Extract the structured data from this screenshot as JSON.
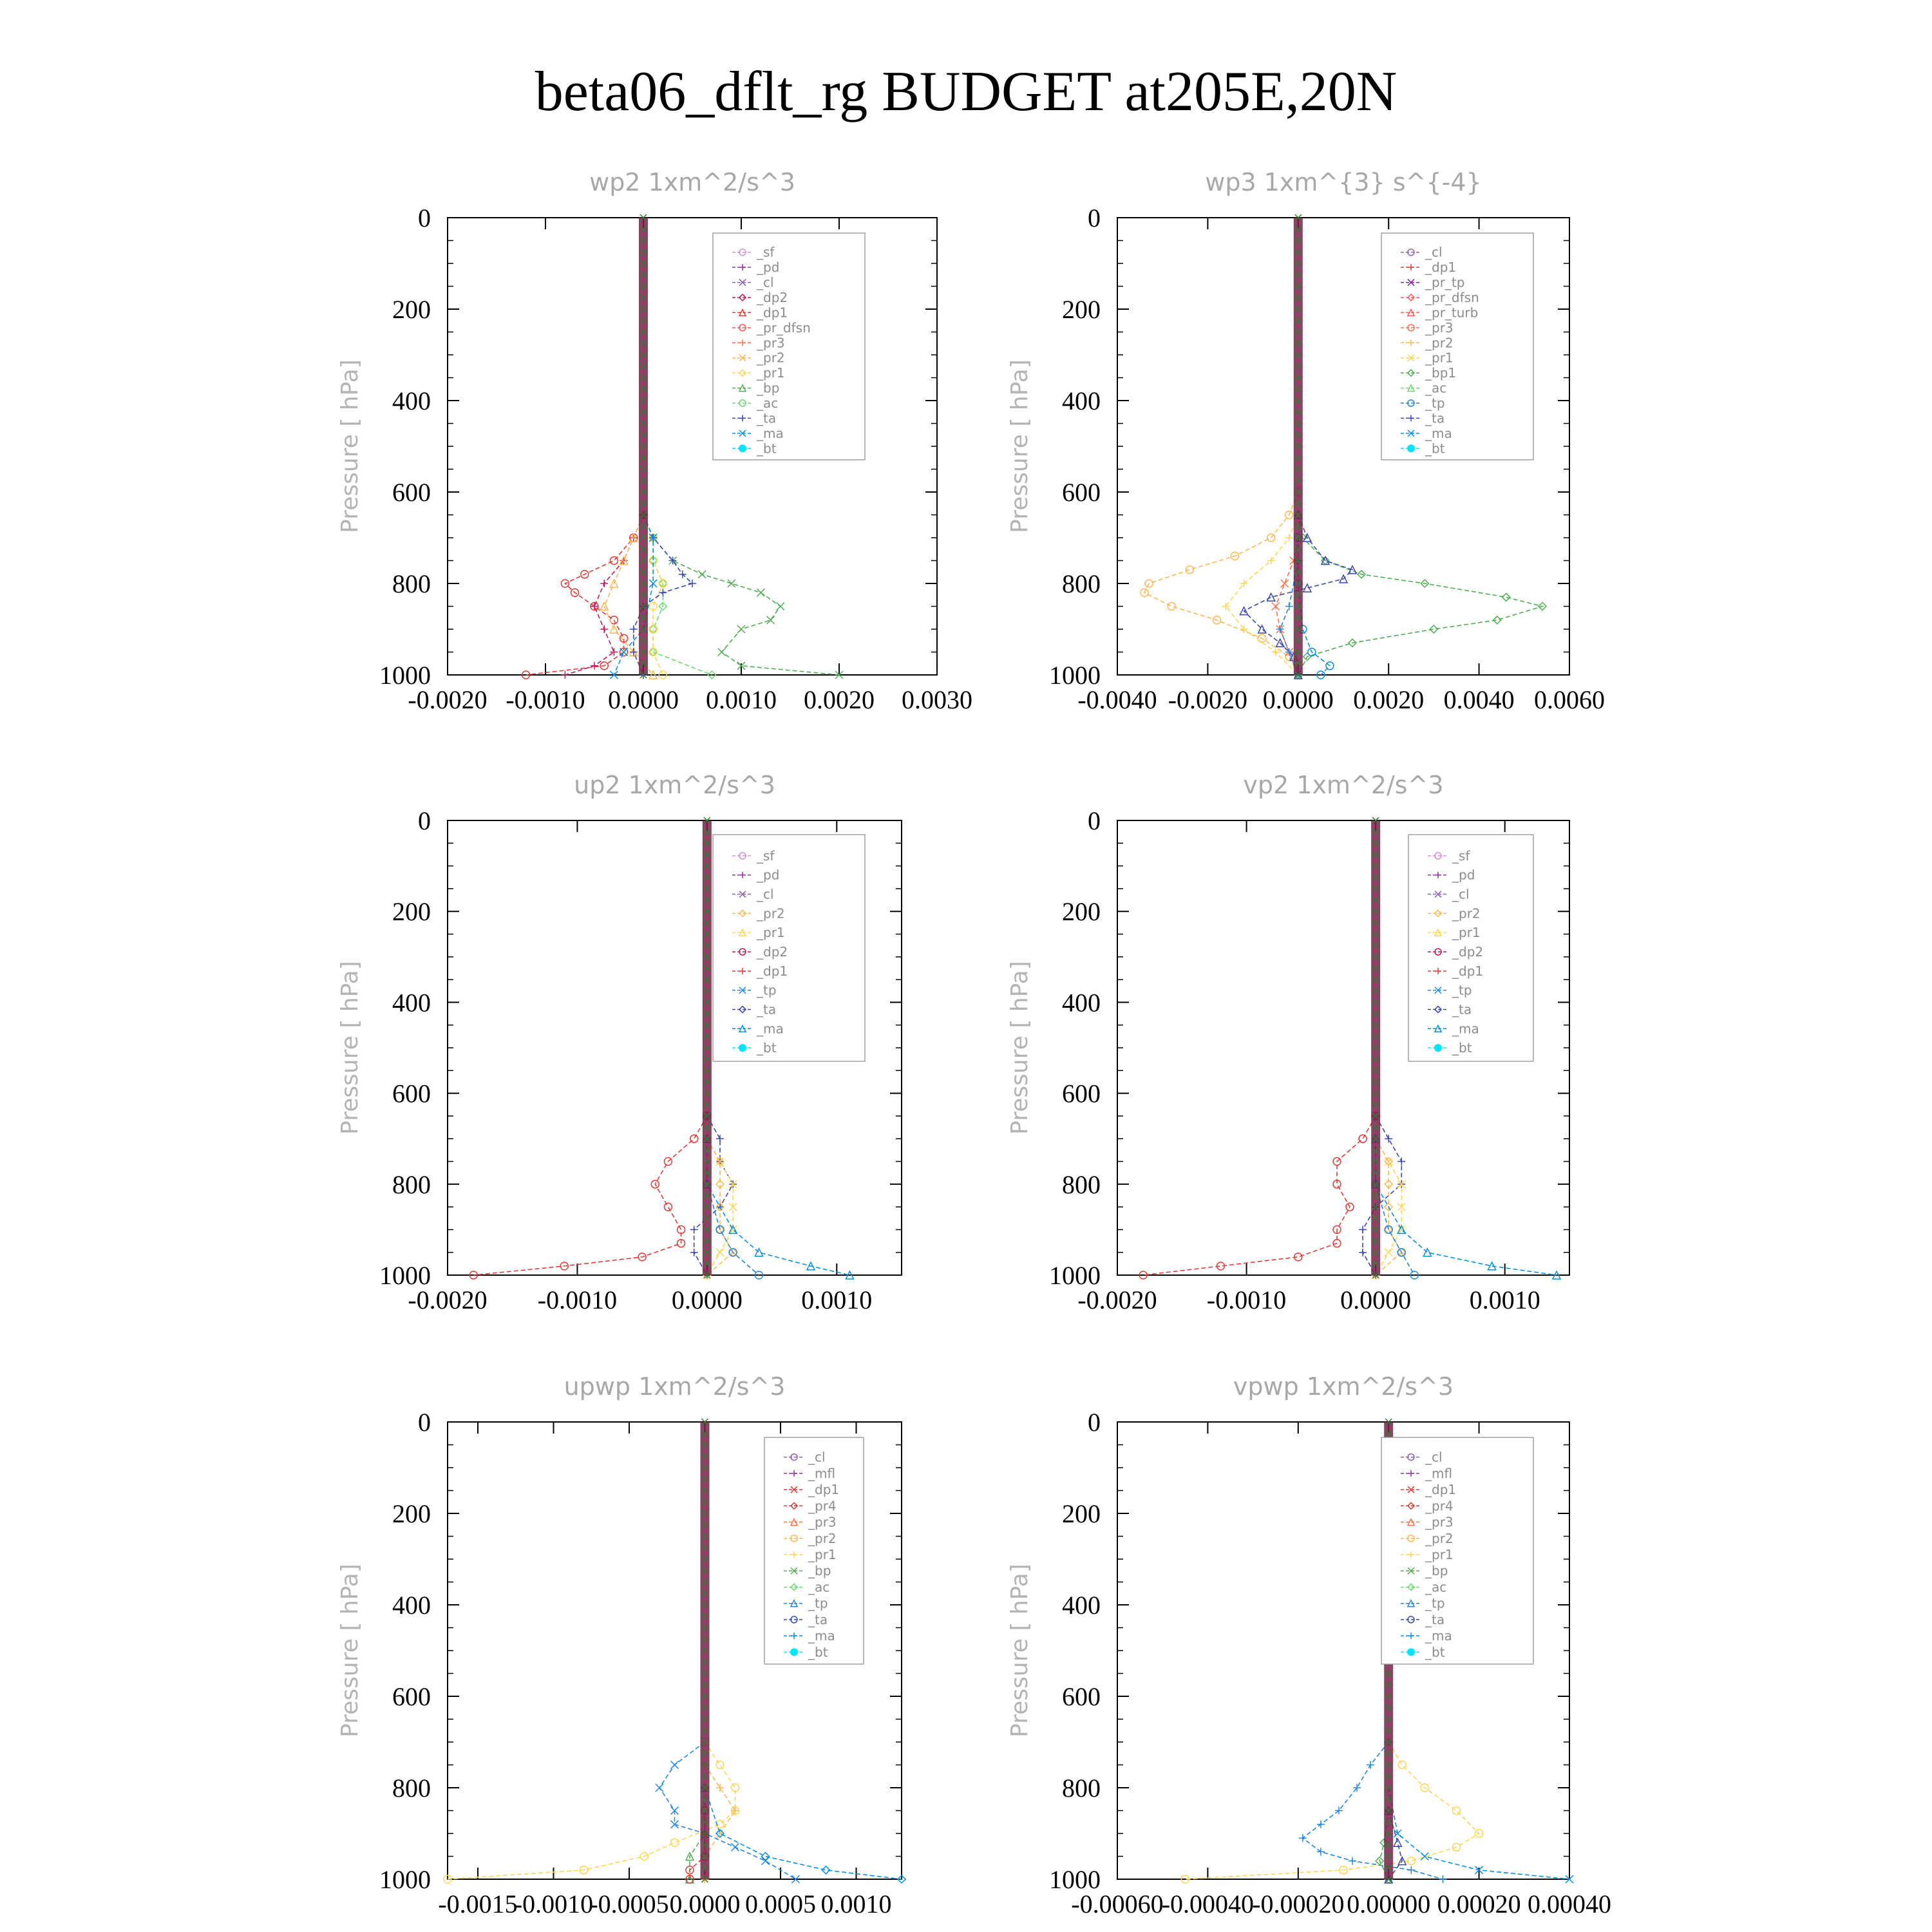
{
  "figure": {
    "title": "beta06_dflt_rg  BUDGET at205E,20N",
    "ylabel": "Pressure [ hPa]"
  },
  "colors": {
    "_sf": "#d98cd9",
    "_pd": "#9c27b0",
    "_cl": "#8e5fb8",
    "_mfl": "#9c27b0",
    "_dp2": "#c2185b",
    "_dp1": "#e53935",
    "_pr_dfsn": "#ff5252",
    "_pr_tp": "#7b1fa2",
    "_pr_turb": "#ff5252",
    "_pr4": "#e53935",
    "_pr3": "#ff7043",
    "_pr2": "#ffb74d",
    "_pr1": "#ffd54f",
    "_bp": "#4caf50",
    "_bp1": "#4caf50",
    "_ac": "#66dd66",
    "_tp": "#1e88e5",
    "_ta": "#3949ab",
    "_ma": "#0091ea",
    "_bt": "#00e5ff",
    "centerline": "#7a1f4a",
    "axis": "#000000"
  },
  "chart_data": [
    {
      "type": "line",
      "title": "wp2  1xm^2/s^3",
      "ylabel": "Pressure [ hPa]",
      "xlim": [
        -0.002,
        0.003
      ],
      "ylim": [
        1000,
        0
      ],
      "xticklabels": [
        "-0.0020",
        "-0.0010",
        "0.0000",
        "0.0010",
        "0.0020",
        "0.0030"
      ],
      "yticklabels": [
        "0",
        "200",
        "400",
        "600",
        "800",
        "1000"
      ],
      "legend": [
        "_sf",
        "_pd",
        "_cl",
        "_dp2",
        "_dp1",
        "_pr_dfsn",
        "_pr3",
        "_pr2",
        "_pr1",
        "_bp",
        "_ac",
        "_ta",
        "_ma",
        "_bt"
      ],
      "series": [
        {
          "name": "_dp1",
          "y": [
            650,
            700,
            750,
            780,
            800,
            820,
            850,
            880,
            920,
            950,
            980,
            1000
          ],
          "x": [
            0,
            -0.0001,
            -0.0003,
            -0.0006,
            -0.0008,
            -0.0007,
            -0.0005,
            -0.0003,
            -0.0002,
            -0.0002,
            -0.0004,
            -0.0012
          ]
        },
        {
          "name": "_dp2",
          "y": [
            650,
            700,
            750,
            800,
            850,
            900,
            950,
            980,
            1000
          ],
          "x": [
            0,
            -0.0001,
            -0.0002,
            -0.0004,
            -0.0005,
            -0.0004,
            -0.0003,
            -0.0005,
            -0.0008
          ]
        },
        {
          "name": "_bp",
          "y": [
            650,
            700,
            750,
            780,
            800,
            820,
            850,
            880,
            900,
            950,
            980,
            1000
          ],
          "x": [
            0,
            0.0001,
            0.0003,
            0.0006,
            0.0009,
            0.0012,
            0.0014,
            0.0013,
            0.001,
            0.0008,
            0.001,
            0.002
          ]
        },
        {
          "name": "_ac",
          "y": [
            650,
            700,
            750,
            800,
            850,
            900,
            950,
            1000
          ],
          "x": [
            0,
            0.0001,
            0.0001,
            0.0002,
            0.0002,
            0.0001,
            0.0001,
            0.0007
          ]
        },
        {
          "name": "_pr2",
          "y": [
            650,
            700,
            750,
            800,
            850,
            900,
            950,
            1000
          ],
          "x": [
            0,
            -0.0001,
            -0.0002,
            -0.0003,
            -0.0004,
            -0.0003,
            -0.0001,
            0.0001
          ]
        },
        {
          "name": "_pr1",
          "y": [
            650,
            700,
            750,
            800,
            850,
            900,
            950,
            1000
          ],
          "x": [
            0,
            0.0001,
            0.0001,
            0.0002,
            0.0001,
            0.0001,
            0.0001,
            0.0002
          ]
        },
        {
          "name": "_ta",
          "y": [
            650,
            700,
            750,
            780,
            800,
            820,
            850,
            900,
            950,
            1000
          ],
          "x": [
            0,
            0.0001,
            0.0003,
            0.0004,
            0.0005,
            0.0002,
            0,
            -0.0001,
            -0.0001,
            0
          ]
        },
        {
          "name": "_ma",
          "y": [
            650,
            700,
            800,
            900,
            950,
            1000
          ],
          "x": [
            0,
            0.0001,
            0.0001,
            0,
            -0.0002,
            -0.0003
          ]
        }
      ]
    },
    {
      "type": "line",
      "title": "wp3  1xm^{3} s^{-4}",
      "ylabel": "Pressure [ hPa]",
      "xlim": [
        -0.004,
        0.006
      ],
      "ylim": [
        1000,
        0
      ],
      "xticklabels": [
        "-0.0040",
        "-0.0020",
        "0.0000",
        "0.0020",
        "0.0040",
        "0.0060"
      ],
      "yticklabels": [
        "0",
        "200",
        "400",
        "600",
        "800",
        "1000"
      ],
      "legend": [
        "_cl",
        "_dp1",
        "_pr_tp",
        "_pr_dfsn",
        "_pr_turb",
        "_pr3",
        "_pr2",
        "_pr1",
        "_bp1",
        "_ac",
        "_tp",
        "_ta",
        "_ma",
        "_bt"
      ],
      "series": [
        {
          "name": "_pr2",
          "y": [
            600,
            650,
            700,
            740,
            770,
            800,
            820,
            850,
            880,
            920,
            960,
            1000
          ],
          "x": [
            0,
            -0.0002,
            -0.0006,
            -0.0014,
            -0.0024,
            -0.0033,
            -0.0034,
            -0.0028,
            -0.0018,
            -0.0008,
            -0.0002,
            0
          ]
        },
        {
          "name": "_pr1",
          "y": [
            650,
            700,
            750,
            800,
            850,
            900,
            950,
            1000
          ],
          "x": [
            0,
            -0.0002,
            -0.0006,
            -0.0012,
            -0.0016,
            -0.0012,
            -0.0005,
            0
          ]
        },
        {
          "name": "_pr3",
          "y": [
            700,
            750,
            800,
            850,
            900,
            950,
            1000
          ],
          "x": [
            0,
            -0.0001,
            -0.0003,
            -0.0005,
            -0.0004,
            -0.0002,
            0
          ]
        },
        {
          "name": "_bp1",
          "y": [
            650,
            700,
            750,
            780,
            800,
            830,
            850,
            880,
            900,
            930,
            960,
            1000
          ],
          "x": [
            0,
            0.0001,
            0.0006,
            0.0014,
            0.0028,
            0.0046,
            0.0054,
            0.0044,
            0.003,
            0.0012,
            0.0002,
            0
          ]
        },
        {
          "name": "_ta",
          "y": [
            650,
            700,
            750,
            770,
            790,
            810,
            830,
            860,
            900,
            930,
            960,
            1000
          ],
          "x": [
            0,
            0.0002,
            0.0006,
            0.0012,
            0.001,
            0.0002,
            -0.0006,
            -0.0012,
            -0.0008,
            -0.0004,
            -0.0001,
            0
          ]
        },
        {
          "name": "_ma",
          "y": [
            700,
            800,
            900,
            950,
            980,
            1000
          ],
          "x": [
            0,
            0,
            0.0001,
            0.0003,
            0.0007,
            0.0005
          ]
        },
        {
          "name": "_tp",
          "y": [
            750,
            850,
            900,
            950,
            1000
          ],
          "x": [
            0,
            -0.0002,
            -0.0004,
            -0.0002,
            0
          ]
        }
      ]
    },
    {
      "type": "line",
      "title": "up2  1xm^2/s^3",
      "ylabel": "Pressure [ hPa]",
      "xlim": [
        -0.002,
        0.0015
      ],
      "ylim": [
        1000,
        0
      ],
      "xticklabels": [
        "-0.0020",
        "-0.0010",
        "0.0000",
        "0.0010"
      ],
      "yticklabels": [
        "0",
        "200",
        "400",
        "600",
        "800",
        "1000"
      ],
      "legend": [
        "_sf",
        "_pd",
        "_cl",
        "_pr2",
        "_pr1",
        "_dp2",
        "_dp1",
        "_tp",
        "_ta",
        "_ma",
        "_bt"
      ],
      "series": [
        {
          "name": "_dp1",
          "y": [
            650,
            700,
            750,
            800,
            850,
            900,
            930,
            960,
            980,
            1000
          ],
          "x": [
            0,
            -0.0001,
            -0.0003,
            -0.0004,
            -0.0003,
            -0.0002,
            -0.0002,
            -0.0005,
            -0.0011,
            -0.0018
          ]
        },
        {
          "name": "_ta",
          "y": [
            650,
            700,
            750,
            800,
            850,
            900,
            950,
            1000
          ],
          "x": [
            0,
            0.0001,
            0.0001,
            0.0002,
            0.0001,
            -0.0001,
            -0.0001,
            0
          ]
        },
        {
          "name": "_pr1",
          "y": [
            700,
            750,
            800,
            850,
            900,
            950,
            1000
          ],
          "x": [
            0,
            0.0001,
            0.0002,
            0.0002,
            0.0002,
            0.0001,
            0
          ]
        },
        {
          "name": "_pr2",
          "y": [
            700,
            750,
            800,
            850,
            900,
            950,
            1000
          ],
          "x": [
            0,
            0.0001,
            0.0001,
            0.0001,
            0.0001,
            0.0002,
            0
          ]
        },
        {
          "name": "_ma",
          "y": [
            700,
            800,
            900,
            950,
            980,
            1000
          ],
          "x": [
            0,
            0,
            0.0002,
            0.0004,
            0.0008,
            0.0011
          ]
        },
        {
          "name": "_tp",
          "y": [
            800,
            900,
            950,
            1000
          ],
          "x": [
            0,
            0.0001,
            0.0002,
            0.0004
          ]
        }
      ]
    },
    {
      "type": "line",
      "title": "vp2  1xm^2/s^3",
      "ylabel": "Pressure [ hPa]",
      "xlim": [
        -0.002,
        0.0015
      ],
      "ylim": [
        1000,
        0
      ],
      "xticklabels": [
        "-0.0020",
        "-0.0010",
        "0.0000",
        "0.0010"
      ],
      "yticklabels": [
        "0",
        "200",
        "400",
        "600",
        "800",
        "1000"
      ],
      "legend": [
        "_sf",
        "_pd",
        "_cl",
        "_pr2",
        "_pr1",
        "_dp2",
        "_dp1",
        "_tp",
        "_ta",
        "_ma",
        "_bt"
      ],
      "series": [
        {
          "name": "_dp1",
          "y": [
            650,
            700,
            750,
            800,
            850,
            900,
            930,
            960,
            980,
            1000
          ],
          "x": [
            0,
            -0.0001,
            -0.0003,
            -0.0003,
            -0.0002,
            -0.0003,
            -0.0003,
            -0.0006,
            -0.0012,
            -0.0018
          ]
        },
        {
          "name": "_ta",
          "y": [
            650,
            700,
            750,
            800,
            850,
            900,
            950,
            1000
          ],
          "x": [
            0,
            0.0001,
            0.0002,
            0.0002,
            0,
            -0.0001,
            -0.0001,
            0
          ]
        },
        {
          "name": "_pr1",
          "y": [
            700,
            750,
            800,
            850,
            900,
            950,
            1000
          ],
          "x": [
            0,
            0.0001,
            0.0002,
            0.0002,
            0.0002,
            0.0001,
            0
          ]
        },
        {
          "name": "_pr2",
          "y": [
            700,
            750,
            800,
            850,
            900,
            950,
            1000
          ],
          "x": [
            0,
            0.0001,
            0.0001,
            0.0001,
            0.0001,
            0.0002,
            0
          ]
        },
        {
          "name": "_ma",
          "y": [
            700,
            800,
            900,
            950,
            980,
            1000
          ],
          "x": [
            0,
            0,
            0.0002,
            0.0004,
            0.0009,
            0.0014
          ]
        },
        {
          "name": "_tp",
          "y": [
            800,
            900,
            950,
            1000
          ],
          "x": [
            0,
            0.0001,
            0.0002,
            0.0003
          ]
        }
      ]
    },
    {
      "type": "line",
      "title": "upwp  1xm^2/s^3",
      "ylabel": "Pressure [ hPa]",
      "xlim": [
        -0.0017,
        0.0013
      ],
      "ylim": [
        1000,
        0
      ],
      "xticklabels": [
        "-0.0015",
        "-0.0010",
        "-0.0005",
        "0.0000",
        "0.0005",
        "0.0010"
      ],
      "yticklabels": [
        "0",
        "200",
        "400",
        "600",
        "800",
        "1000"
      ],
      "legend": [
        "_cl",
        "_mfl",
        "_dp1",
        "_pr4",
        "_pr3",
        "_pr2",
        "_pr1",
        "_bp",
        "_ac",
        "_tp",
        "_ta",
        "_ma",
        "_bt"
      ],
      "series": [
        {
          "name": "_pr1",
          "y": [
            700,
            750,
            800,
            850,
            880,
            920,
            950,
            980,
            1000
          ],
          "x": [
            0,
            0.0001,
            0.0002,
            0.0002,
            0.0001,
            -0.0002,
            -0.0004,
            -0.0008,
            -0.0017
          ]
        },
        {
          "name": "_pr2",
          "y": [
            750,
            800,
            850,
            900,
            950,
            1000
          ],
          "x": [
            0,
            0.0001,
            0.0002,
            0.0001,
            0,
            0
          ]
        },
        {
          "name": "_tp",
          "y": [
            700,
            750,
            800,
            850,
            880,
            900,
            930,
            960,
            1000
          ],
          "x": [
            0,
            -0.0002,
            -0.0003,
            -0.0002,
            -0.0002,
            0,
            0.0002,
            0.0004,
            0.0006
          ]
        },
        {
          "name": "_ma",
          "y": [
            800,
            900,
            950,
            980,
            1000
          ],
          "x": [
            0,
            0.0001,
            0.0004,
            0.0008,
            0.0013
          ]
        },
        {
          "name": "_bp",
          "y": [
            800,
            900,
            950,
            1000
          ],
          "x": [
            0,
            0,
            -0.0001,
            -0.0001
          ]
        },
        {
          "name": "_dp1",
          "y": [
            850,
            950,
            980,
            1000
          ],
          "x": [
            0,
            0,
            -0.0001,
            -0.0001
          ]
        }
      ]
    },
    {
      "type": "line",
      "title": "vpwp  1xm^2/s^3",
      "ylabel": "Pressure [ hPa]",
      "xlim": [
        -0.0006,
        0.0004
      ],
      "ylim": [
        1000,
        0
      ],
      "xticklabels": [
        "-0.00060",
        "-0.00040",
        "-0.00020",
        "0.00000",
        "0.00020",
        "0.00040"
      ],
      "yticklabels": [
        "0",
        "200",
        "400",
        "600",
        "800",
        "1000"
      ],
      "legend": [
        "_cl",
        "_mfl",
        "_dp1",
        "_pr4",
        "_pr3",
        "_pr2",
        "_pr1",
        "_bp",
        "_ac",
        "_tp",
        "_ta",
        "_ma",
        "_bt"
      ],
      "series": [
        {
          "name": "_pr1",
          "y": [
            700,
            750,
            800,
            850,
            900,
            930,
            960,
            980,
            1000
          ],
          "x": [
            0,
            3e-05,
            8e-05,
            0.00015,
            0.0002,
            0.00015,
            5e-05,
            -0.0001,
            -0.00045
          ]
        },
        {
          "name": "_tp",
          "y": [
            700,
            750,
            800,
            850,
            880,
            910,
            940,
            960,
            980,
            1000
          ],
          "x": [
            0,
            -4e-05,
            -7e-05,
            -0.00011,
            -0.00015,
            -0.00019,
            -0.00015,
            -8e-05,
            5e-05,
            0.00012
          ]
        },
        {
          "name": "_ma",
          "y": [
            800,
            900,
            950,
            980,
            1000
          ],
          "x": [
            0,
            2e-05,
            8e-05,
            0.0002,
            0.0004
          ]
        },
        {
          "name": "_bp",
          "y": [
            850,
            920,
            960,
            1000
          ],
          "x": [
            0,
            -1e-05,
            -2e-05,
            0
          ]
        },
        {
          "name": "_ta",
          "y": [
            850,
            920,
            960,
            1000
          ],
          "x": [
            0,
            2e-05,
            3e-05,
            0
          ]
        }
      ]
    }
  ]
}
